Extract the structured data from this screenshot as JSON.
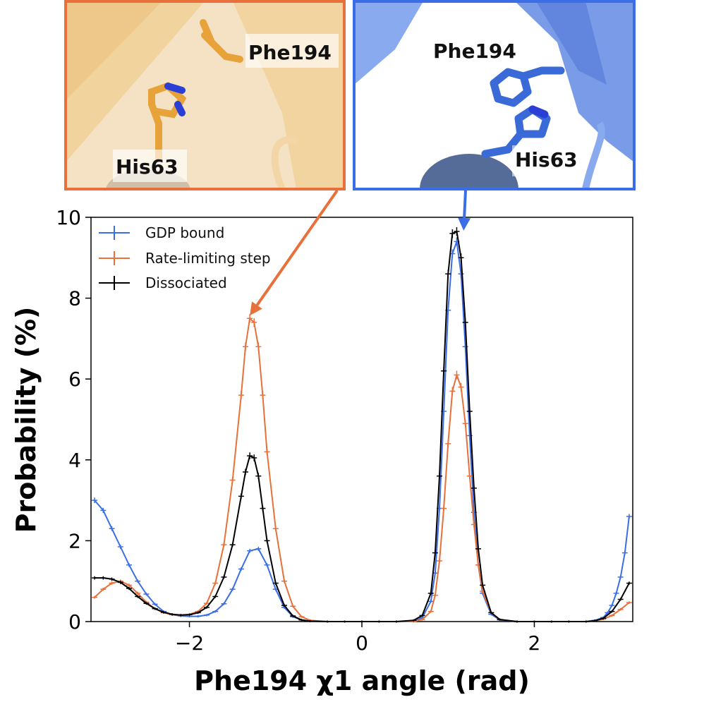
{
  "colors": {
    "gdp": "#3b6ee6",
    "rate": "#e8703a",
    "diss": "#000000",
    "orange_frame": "#e8703a",
    "blue_frame": "#3b6ee6",
    "orange_residue": "#e8a23a",
    "blue_residue": "#3a6ad8",
    "nitrogen": "#2b3fd6"
  },
  "insets": {
    "left": {
      "labels": [
        "Phe194",
        "His63"
      ]
    },
    "right": {
      "labels": [
        "Phe194",
        "His63"
      ]
    }
  },
  "chart_data": {
    "type": "line",
    "title": "",
    "xlabel": "Phe194 χ1 angle (rad)",
    "ylabel": "Probability (%)",
    "xlim": [
      -3.1416,
      3.1416
    ],
    "ylim": [
      0,
      10
    ],
    "xticks": [
      -2,
      0,
      2
    ],
    "xtick_labels": [
      "−2",
      "0",
      "2"
    ],
    "yticks": [
      0,
      2,
      4,
      6,
      8,
      10
    ],
    "ytick_labels": [
      "0",
      "2",
      "4",
      "6",
      "8",
      "10"
    ],
    "legend_position": "top-left",
    "error_bars": true,
    "series": [
      {
        "name": "GDP bound",
        "color_key": "gdp",
        "x": [
          -3.1,
          -3.0,
          -2.9,
          -2.8,
          -2.7,
          -2.6,
          -2.5,
          -2.4,
          -2.3,
          -2.2,
          -2.1,
          -2.0,
          -1.9,
          -1.8,
          -1.7,
          -1.6,
          -1.5,
          -1.4,
          -1.3,
          -1.2,
          -1.1,
          -1.0,
          -0.9,
          -0.8,
          -0.7,
          -0.6,
          -0.4,
          -0.2,
          0.0,
          0.2,
          0.4,
          0.6,
          0.7,
          0.8,
          0.85,
          0.9,
          0.95,
          1.0,
          1.05,
          1.1,
          1.15,
          1.2,
          1.25,
          1.3,
          1.35,
          1.4,
          1.5,
          1.6,
          1.8,
          2.0,
          2.2,
          2.4,
          2.6,
          2.7,
          2.8,
          2.85,
          2.9,
          2.95,
          3.0,
          3.05,
          3.1
        ],
        "y": [
          3.0,
          2.75,
          2.3,
          1.85,
          1.4,
          1.0,
          0.68,
          0.43,
          0.25,
          0.17,
          0.14,
          0.13,
          0.13,
          0.16,
          0.25,
          0.44,
          0.8,
          1.3,
          1.75,
          1.8,
          1.4,
          0.8,
          0.35,
          0.12,
          0.04,
          0.01,
          0.0,
          0.0,
          0.0,
          0.0,
          0.0,
          0.0,
          0.1,
          0.5,
          1.2,
          2.8,
          5.2,
          7.7,
          9.1,
          9.4,
          8.6,
          6.8,
          4.6,
          2.7,
          1.4,
          0.7,
          0.18,
          0.04,
          0.0,
          0.0,
          0.0,
          0.0,
          0.0,
          0.03,
          0.1,
          0.22,
          0.4,
          0.7,
          1.1,
          1.7,
          2.6
        ]
      },
      {
        "name": "Rate-limiting step",
        "color_key": "rate",
        "x": [
          -3.1,
          -3.0,
          -2.9,
          -2.8,
          -2.7,
          -2.6,
          -2.5,
          -2.4,
          -2.3,
          -2.2,
          -2.1,
          -2.0,
          -1.9,
          -1.8,
          -1.7,
          -1.6,
          -1.5,
          -1.4,
          -1.35,
          -1.3,
          -1.25,
          -1.2,
          -1.15,
          -1.1,
          -1.0,
          -0.9,
          -0.8,
          -0.7,
          -0.6,
          -0.4,
          -0.2,
          0.0,
          0.2,
          0.4,
          0.6,
          0.7,
          0.8,
          0.85,
          0.9,
          0.95,
          1.0,
          1.05,
          1.1,
          1.15,
          1.2,
          1.25,
          1.3,
          1.35,
          1.4,
          1.5,
          1.6,
          1.8,
          2.0,
          2.2,
          2.4,
          2.6,
          2.7,
          2.8,
          2.9,
          3.0,
          3.1
        ],
        "y": [
          0.6,
          0.8,
          0.95,
          1.0,
          0.9,
          0.7,
          0.48,
          0.32,
          0.22,
          0.17,
          0.16,
          0.18,
          0.25,
          0.45,
          0.95,
          1.9,
          3.5,
          5.6,
          6.8,
          7.5,
          7.4,
          6.8,
          5.6,
          4.2,
          2.3,
          1.0,
          0.38,
          0.12,
          0.03,
          0.0,
          0.0,
          0.0,
          0.0,
          0.0,
          0.0,
          0.05,
          0.25,
          0.65,
          1.5,
          2.8,
          4.4,
          5.7,
          6.1,
          5.8,
          4.9,
          3.6,
          2.4,
          1.4,
          0.75,
          0.22,
          0.05,
          0.0,
          0.0,
          0.0,
          0.0,
          0.0,
          0.02,
          0.06,
          0.15,
          0.3,
          0.47
        ]
      },
      {
        "name": "Dissociated",
        "color_key": "diss",
        "x": [
          -3.1,
          -3.0,
          -2.9,
          -2.8,
          -2.7,
          -2.6,
          -2.5,
          -2.4,
          -2.3,
          -2.2,
          -2.1,
          -2.0,
          -1.9,
          -1.8,
          -1.7,
          -1.6,
          -1.5,
          -1.4,
          -1.35,
          -1.3,
          -1.25,
          -1.2,
          -1.15,
          -1.1,
          -1.0,
          -0.9,
          -0.8,
          -0.7,
          -0.6,
          -0.4,
          -0.2,
          0.0,
          0.2,
          0.4,
          0.6,
          0.7,
          0.8,
          0.85,
          0.9,
          0.95,
          1.0,
          1.05,
          1.1,
          1.15,
          1.2,
          1.25,
          1.3,
          1.35,
          1.4,
          1.5,
          1.6,
          1.8,
          2.0,
          2.2,
          2.4,
          2.6,
          2.7,
          2.8,
          2.9,
          3.0,
          3.1
        ],
        "y": [
          1.08,
          1.08,
          1.05,
          0.97,
          0.82,
          0.62,
          0.45,
          0.32,
          0.23,
          0.18,
          0.16,
          0.17,
          0.22,
          0.35,
          0.62,
          1.1,
          1.9,
          3.1,
          3.7,
          4.1,
          4.05,
          3.6,
          2.8,
          2.0,
          0.95,
          0.4,
          0.14,
          0.04,
          0.01,
          0.0,
          0.0,
          0.0,
          0.0,
          0.0,
          0.03,
          0.15,
          0.7,
          1.7,
          3.6,
          6.2,
          8.6,
          9.6,
          9.65,
          9.0,
          7.4,
          5.2,
          3.3,
          1.8,
          0.9,
          0.22,
          0.05,
          0.0,
          0.0,
          0.0,
          0.0,
          0.0,
          0.02,
          0.08,
          0.25,
          0.55,
          0.95
        ]
      }
    ],
    "annotations": [
      {
        "type": "arrow",
        "from": "left-inset",
        "to_x": -1.3,
        "to_y": 7.5,
        "color_key": "rate"
      },
      {
        "type": "arrow",
        "from": "right-inset",
        "to_x": 1.18,
        "to_y": 9.6,
        "color_key": "gdp"
      }
    ]
  }
}
